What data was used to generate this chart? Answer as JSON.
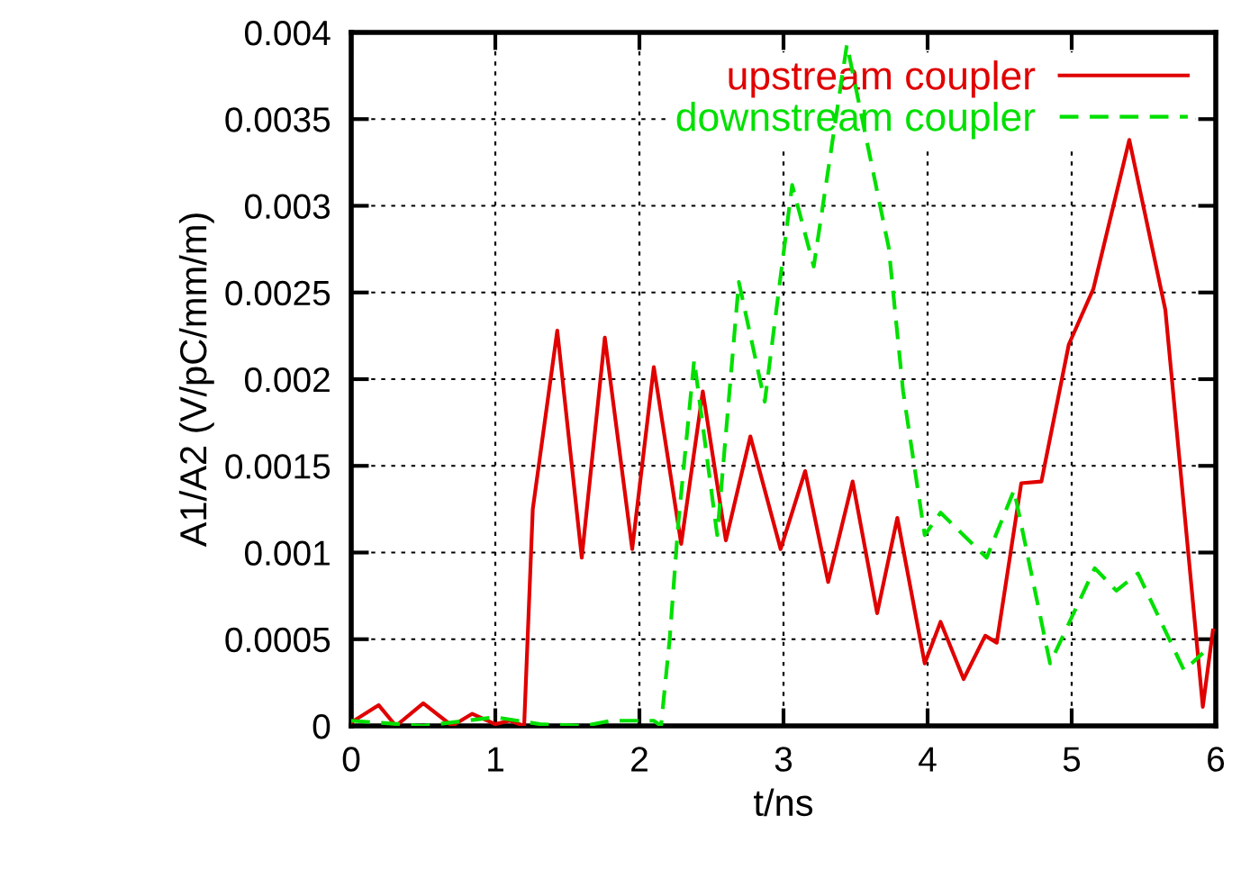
{
  "chart_data": {
    "type": "line",
    "xlabel": "t/ns",
    "ylabel": "A1/A2 (V/pC/mm/m)",
    "xlim": [
      0,
      6
    ],
    "ylim": [
      0,
      0.004
    ],
    "xticks": [
      0,
      1,
      2,
      3,
      4,
      5,
      6
    ],
    "yticks": [
      0,
      0.0005,
      0.001,
      0.0015,
      0.002,
      0.0025,
      0.003,
      0.0035,
      0.004
    ],
    "grid": true,
    "legend": "top right",
    "series": [
      {
        "name": "upstream coupler",
        "color": "#e00000",
        "line_style": "solid",
        "x": [
          0,
          0.19,
          0.31,
          0.5,
          0.7,
          0.84,
          1.0,
          1.1,
          1.2,
          1.26,
          1.43,
          1.6,
          1.76,
          1.95,
          2.1,
          2.29,
          2.44,
          2.6,
          2.77,
          2.98,
          3.15,
          3.31,
          3.48,
          3.65,
          3.79,
          3.98,
          4.09,
          4.25,
          4.4,
          4.48,
          4.65,
          4.79,
          4.98,
          5.15,
          5.4,
          5.65,
          5.91,
          5.98
        ],
        "values": [
          2e-05,
          0.00012,
          0,
          0.00013,
          0,
          7e-05,
          1e-05,
          3e-05,
          0,
          0.00125,
          0.00228,
          0.00097,
          0.00224,
          0.00102,
          0.00207,
          0.00105,
          0.00193,
          0.00107,
          0.00167,
          0.00102,
          0.00147,
          0.00083,
          0.00141,
          0.00065,
          0.0012,
          0.00036,
          0.0006,
          0.00027,
          0.00052,
          0.00048,
          0.0014,
          0.00141,
          0.0022,
          0.00252,
          0.00338,
          0.0024,
          0.00011,
          0.00055
        ]
      },
      {
        "name": "downstream coupler",
        "color": "#00e000",
        "line_style": "dashed",
        "x": [
          0,
          0.5,
          1.0,
          1.31,
          1.62,
          1.8,
          2.1,
          2.15,
          2.21,
          2.27,
          2.38,
          2.54,
          2.69,
          2.87,
          3.06,
          3.21,
          3.44,
          3.73,
          3.83,
          3.98,
          4.09,
          4.41,
          4.6,
          4.85,
          5.16,
          5.31,
          5.46,
          5.78,
          5.91
        ],
        "values": [
          3e-05,
          0,
          5e-05,
          1e-05,
          0,
          3e-05,
          3e-05,
          0,
          0.0005,
          0.00117,
          0.00211,
          0.0011,
          0.00256,
          0.00187,
          0.00312,
          0.00265,
          0.00393,
          0.00276,
          0.00193,
          0.0011,
          0.00123,
          0.00097,
          0.00136,
          0.00036,
          0.00091,
          0.00078,
          0.00088,
          0.00032,
          0.00042
        ]
      }
    ]
  }
}
